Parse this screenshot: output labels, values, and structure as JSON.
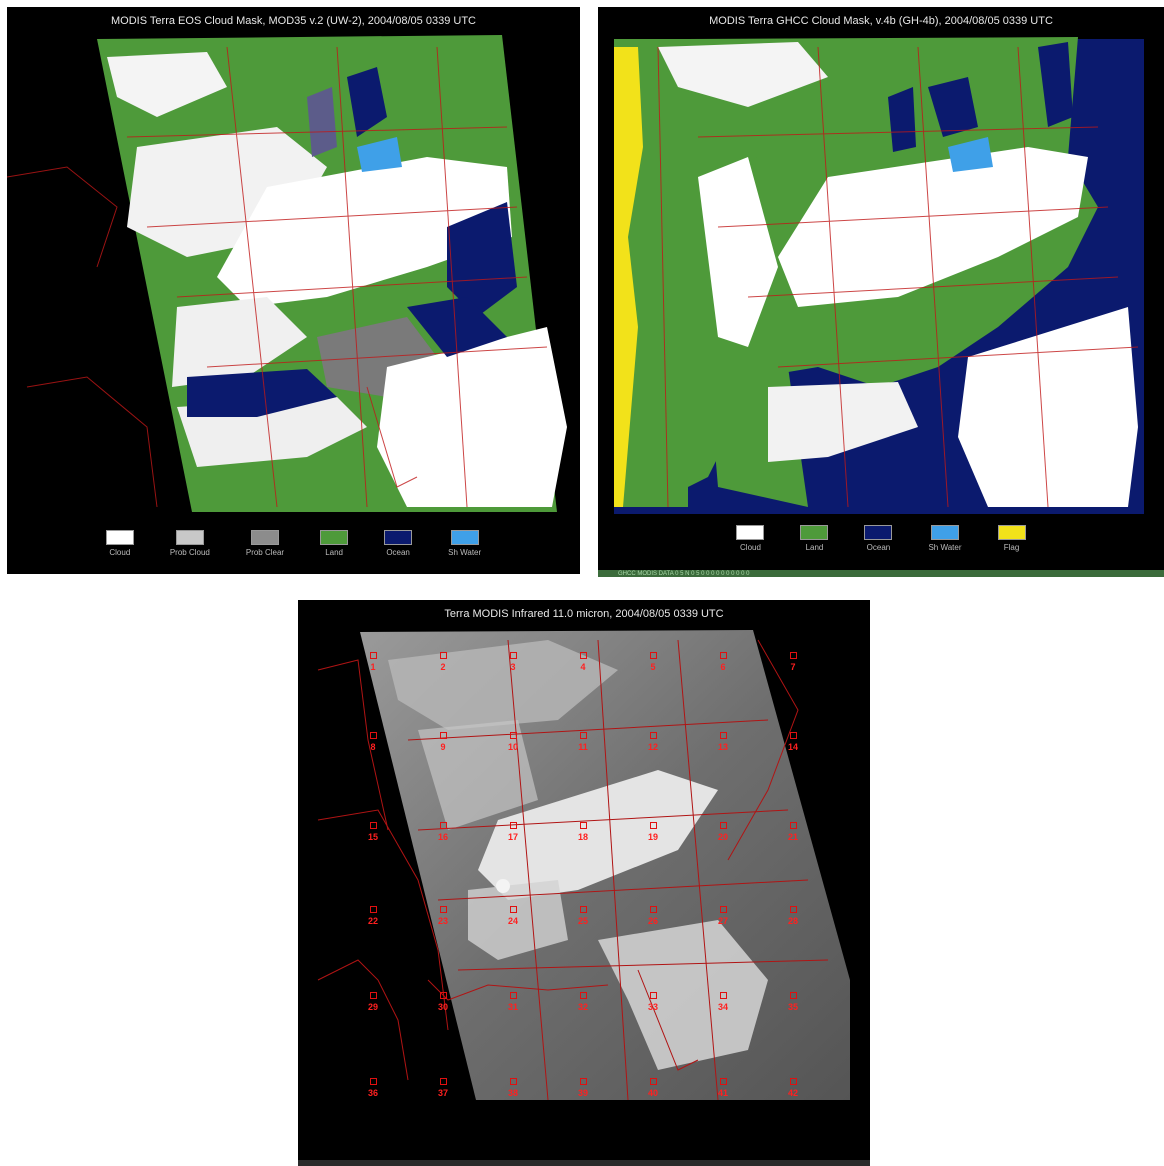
{
  "panels": {
    "left": {
      "title": "MODIS Terra EOS Cloud Mask, MOD35 v.2 (UW-2), 2004/08/05 0339 UTC",
      "legend": [
        {
          "label": "Cloud",
          "color": "#ffffff"
        },
        {
          "label": "Prob Cloud",
          "color": "#c8c8c8"
        },
        {
          "label": "Prob Clear",
          "color": "#8c8c8c"
        },
        {
          "label": "Land",
          "color": "#4e9a3a"
        },
        {
          "label": "Ocean",
          "color": "#0b1a6e"
        },
        {
          "label": "Sh Water",
          "color": "#3fa0e8"
        }
      ]
    },
    "right": {
      "title": "MODIS Terra GHCC Cloud Mask, v.4b (GH-4b), 2004/08/05 0339 UTC",
      "legend": [
        {
          "label": "Cloud",
          "color": "#ffffff"
        },
        {
          "label": "Land",
          "color": "#4e9a3a"
        },
        {
          "label": "Ocean",
          "color": "#0b1a6e"
        },
        {
          "label": "Sh Water",
          "color": "#3fa0e8"
        },
        {
          "label": "Flag",
          "color": "#f2e21a"
        }
      ],
      "footer": "GHCC MODIS DATA   0 5 N 0 5 0 0 0 0 0 0 0 0 0 0"
    },
    "bottom": {
      "title": "Terra MODIS Infrared 11.0 micron, 2004/08/05 0339 UTC",
      "stations": [
        "1",
        "2",
        "3",
        "4",
        "5",
        "6",
        "7",
        "8",
        "9",
        "10",
        "11",
        "12",
        "13",
        "14",
        "15",
        "16",
        "17",
        "18",
        "19",
        "20",
        "21",
        "22",
        "23",
        "24",
        "25",
        "26",
        "27",
        "28",
        "29",
        "30",
        "31",
        "32",
        "33",
        "34",
        "35",
        "36",
        "37",
        "38",
        "39",
        "40",
        "41",
        "42"
      ]
    }
  },
  "colors": {
    "cloud": "#ffffff",
    "land": "#4e9a3a",
    "ocean": "#0b1a6e",
    "boundary": "#c01818",
    "marker": "#ff2020"
  }
}
